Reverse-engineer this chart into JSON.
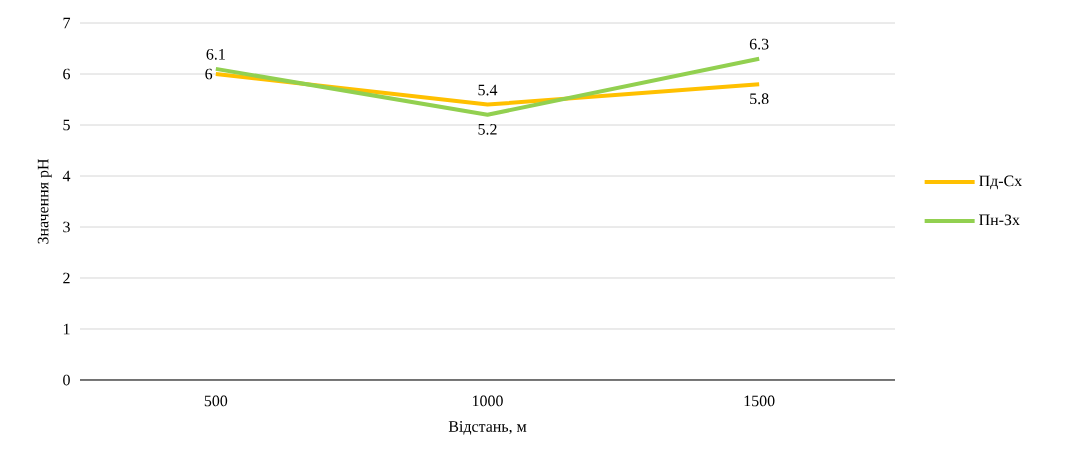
{
  "chart_data": {
    "type": "line",
    "xlabel": "Відстань, м",
    "ylabel": "Значення pH",
    "categories": [
      "500",
      "1000",
      "1500"
    ],
    "series": [
      {
        "name": "Пд-Сх",
        "color": "#ffc000",
        "values": [
          6,
          5.4,
          5.8
        ]
      },
      {
        "name": "Пн-Зх",
        "color": "#92d050",
        "values": [
          6.1,
          5.2,
          6.3
        ]
      }
    ],
    "ylim": [
      0,
      7
    ],
    "yticks": [
      0,
      1,
      2,
      3,
      4,
      5,
      6,
      7
    ],
    "grid": "y",
    "legend": "right",
    "data_labels": true
  }
}
